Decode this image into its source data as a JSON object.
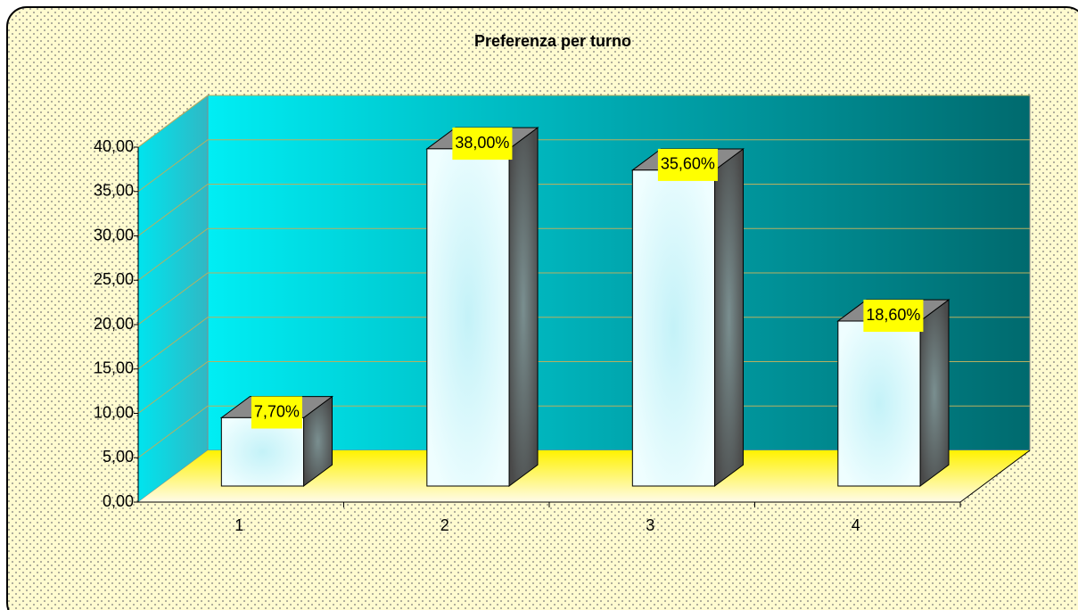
{
  "chart_data": {
    "type": "bar3d",
    "title": "Preferenza per turno",
    "categories": [
      "1",
      "2",
      "3",
      "4"
    ],
    "values": [
      7.7,
      38,
      35.6,
      18.6
    ],
    "value_labels": [
      "7,70%",
      "38,00%",
      "35,60%",
      "18,60%"
    ],
    "color": "#dffbff",
    "ylim": [
      0,
      40
    ],
    "yticks": [
      {
        "value": 0,
        "label": "0,00"
      },
      {
        "value": 5,
        "label": "5,00"
      },
      {
        "value": 10,
        "label": "10,00"
      },
      {
        "value": 15,
        "label": "15,00"
      },
      {
        "value": 20,
        "label": "20,00"
      },
      {
        "value": 25,
        "label": "25,00"
      },
      {
        "value": 30,
        "label": "30,00"
      },
      {
        "value": 35,
        "label": "35,00"
      },
      {
        "value": 40,
        "label": "40,00"
      }
    ],
    "grid": true
  }
}
